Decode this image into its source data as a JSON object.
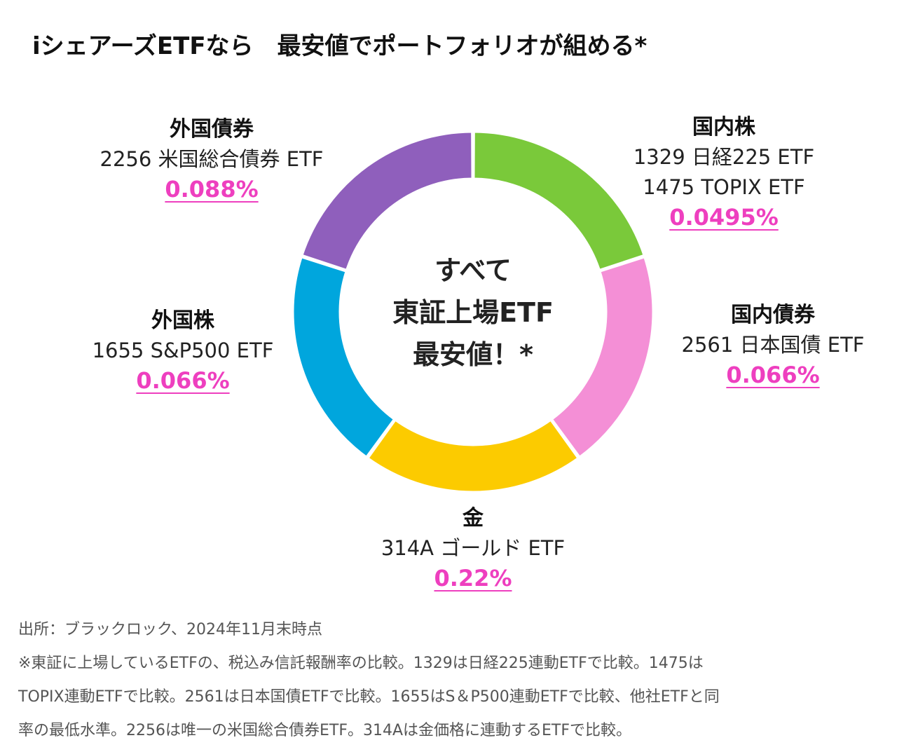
{
  "title": "iシェアーズETFなら　最安値でポートフォリオが組める*",
  "center": {
    "line1": "すべて",
    "line2": "東証上場ETF",
    "line3": "最安値！*"
  },
  "colors": {
    "domestic_equity": "#7ac93a",
    "domestic_bonds": "#f48fd6",
    "gold": "#fccb00",
    "foreign_equity": "#00a6dd",
    "foreign_bonds": "#8f5fbc",
    "highlight": "#ee3fbf"
  },
  "segments": {
    "domestic_equity": {
      "category": "国内株",
      "etfs": [
        "1329 日経225 ETF",
        "1475 TOPIX ETF"
      ],
      "fee": "0.0495%"
    },
    "domestic_bonds": {
      "category": "国内債券",
      "etfs": [
        "2561 日本国債 ETF"
      ],
      "fee": "0.066%"
    },
    "gold": {
      "category": "金",
      "etfs": [
        "314A ゴールド ETF"
      ],
      "fee": "0.22%"
    },
    "foreign_equity": {
      "category": "外国株",
      "etfs": [
        "1655 S&P500 ETF"
      ],
      "fee": "0.066%"
    },
    "foreign_bonds": {
      "category": "外国債券",
      "etfs": [
        "2256 米国総合債券 ETF"
      ],
      "fee": "0.088%"
    }
  },
  "chart_data": {
    "type": "pie",
    "variant": "donut",
    "categories": [
      "国内株",
      "国内債券",
      "金",
      "外国株",
      "外国債券"
    ],
    "values": [
      1,
      1,
      1,
      1,
      1
    ],
    "start_angle_deg": 0
  },
  "notes": {
    "source": "出所：ブラックロック、2024年11月末時点",
    "line1": "※東証に上場しているETFの、税込み信託報酬率の比較。1329は日経225連動ETFで比較。1475は",
    "line2": "TOPIX連動ETFで比較。2561は日本国債ETFで比較。1655はS＆P500連動ETFで比較、他社ETFと同",
    "line3": "率の最低水準。2256は唯一の米国総合債券ETF。314Aは金価格に連動するETFで比較。"
  }
}
